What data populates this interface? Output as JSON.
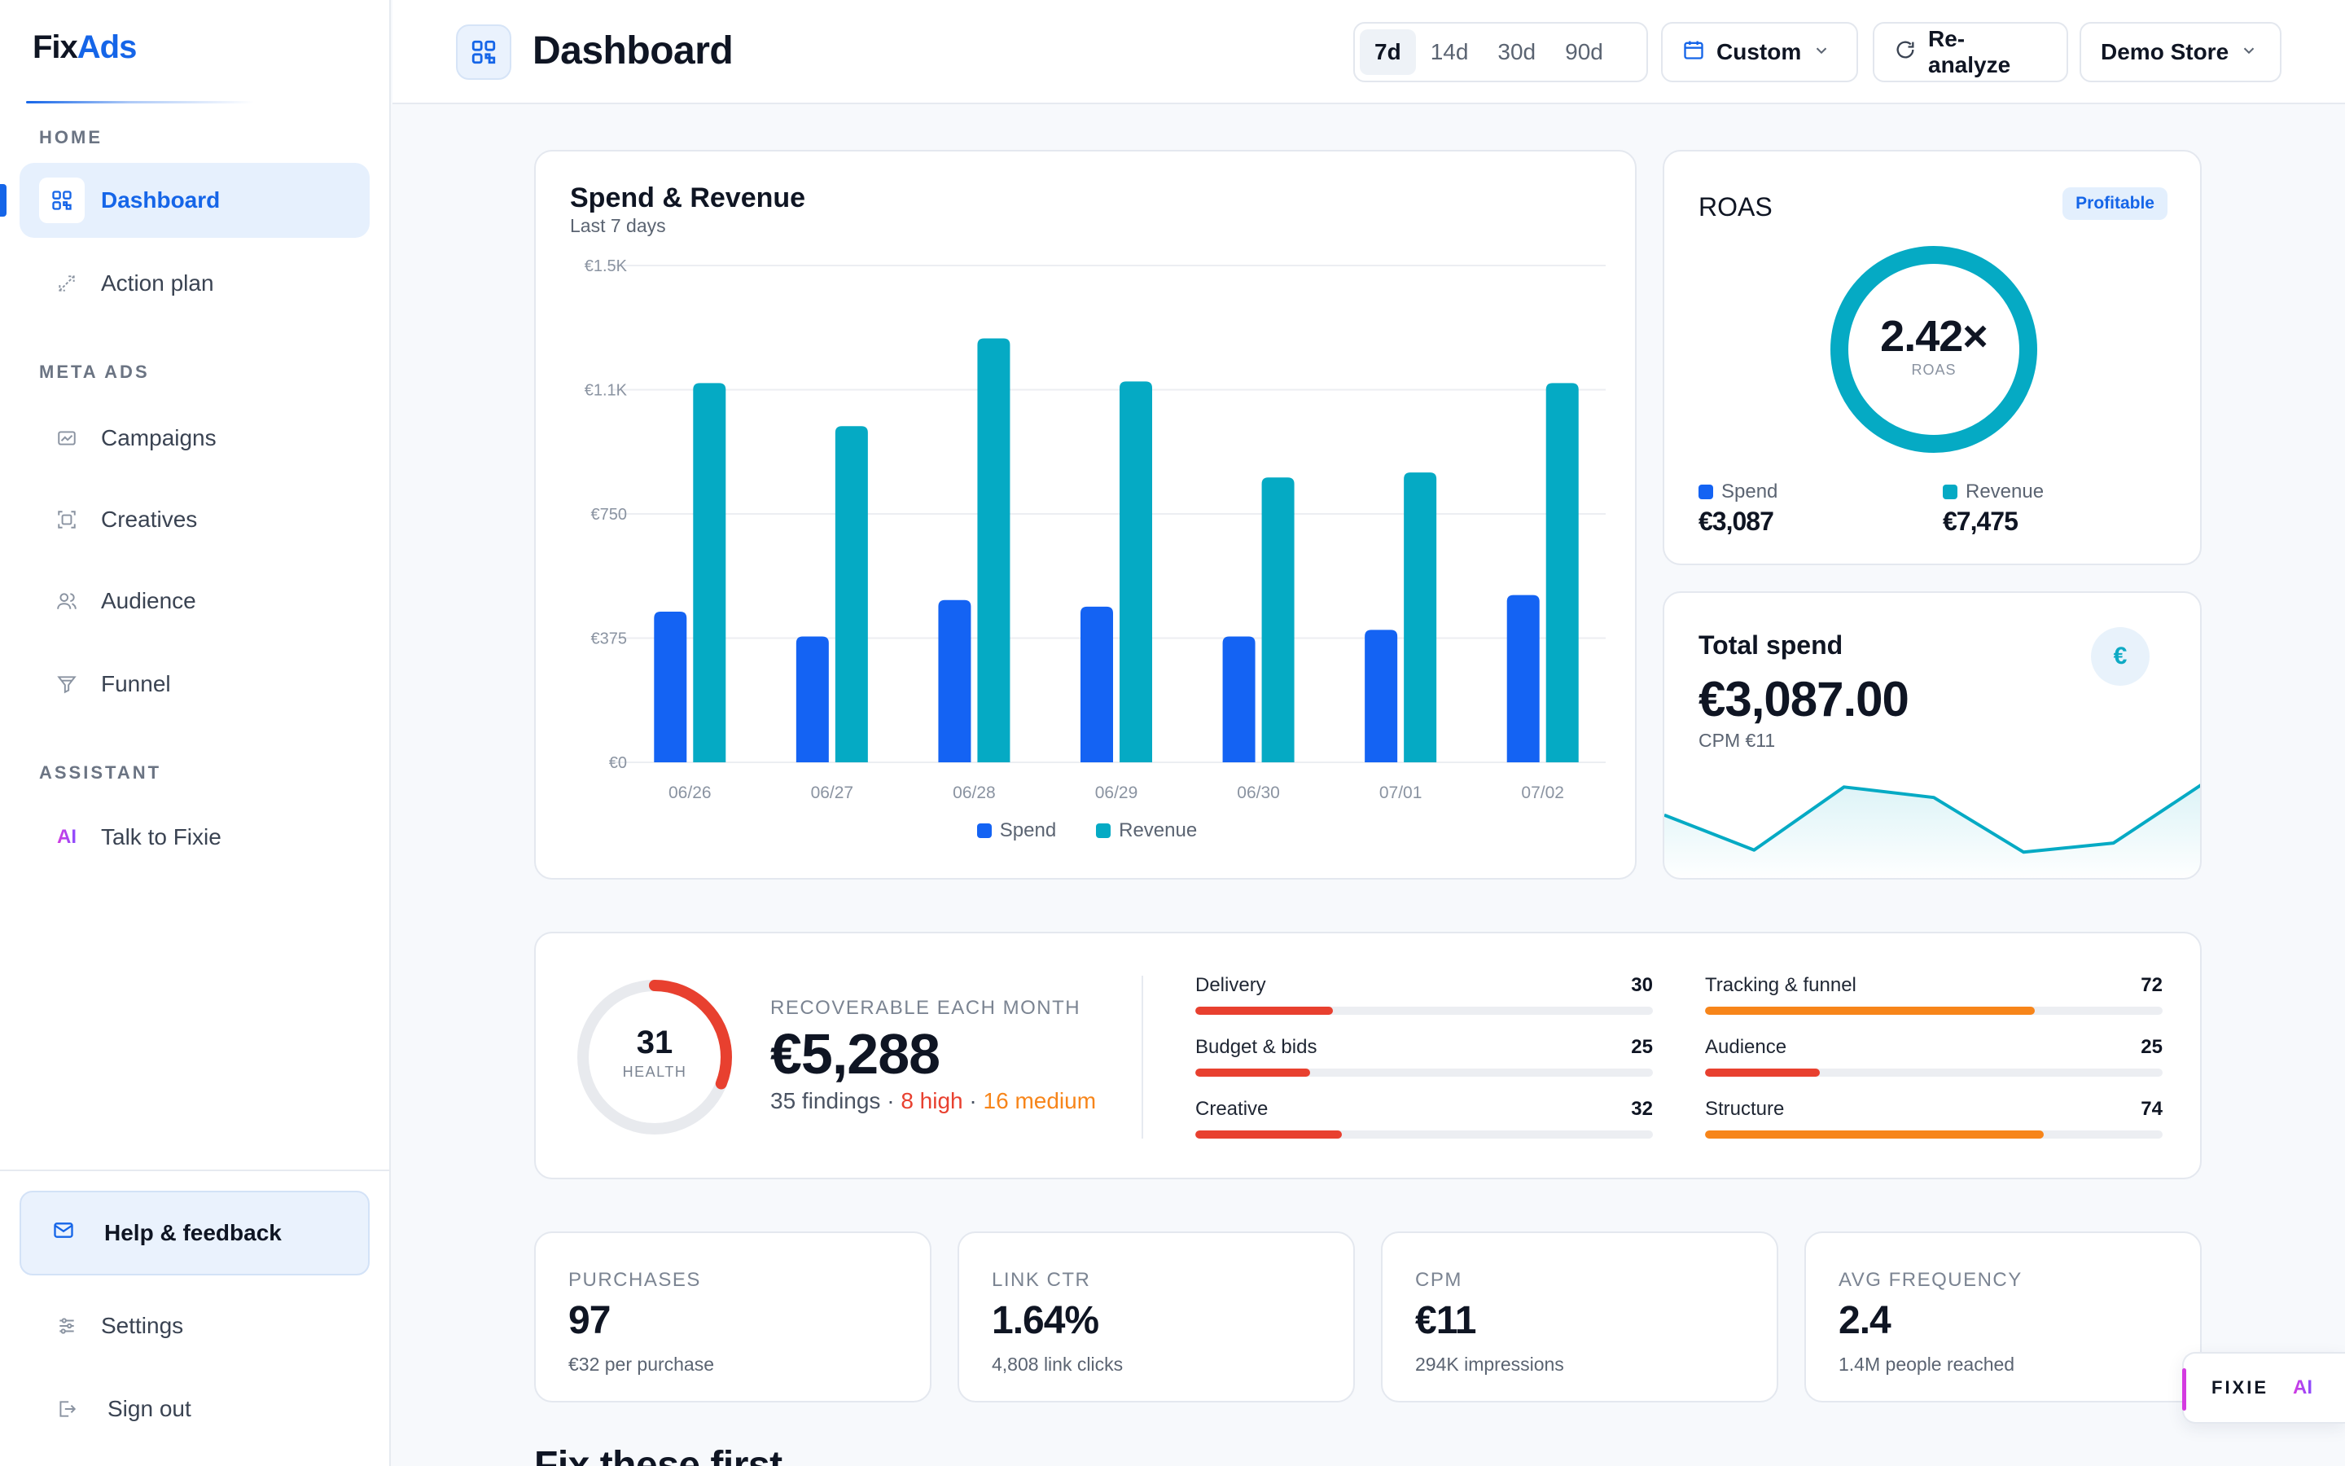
{
  "brand": {
    "fix": "Fix",
    "ads": "Ads"
  },
  "sidebar": {
    "home_label": "HOME",
    "meta_label": "META ADS",
    "assistant_label": "ASSISTANT",
    "items": {
      "dashboard": "Dashboard",
      "action_plan": "Action plan",
      "campaigns": "Campaigns",
      "creatives": "Creatives",
      "audience": "Audience",
      "funnel": "Funnel",
      "talk": "Talk to Fixie"
    },
    "ai_glyph": "AI",
    "help": "Help & feedback",
    "settings": "Settings",
    "signout": "Sign out"
  },
  "header": {
    "title": "Dashboard",
    "ranges": [
      "7d",
      "14d",
      "30d",
      "90d"
    ],
    "active_range": "7d",
    "custom": "Custom",
    "reanalyze": "Re-analyze",
    "store": "Demo Store"
  },
  "spend_chart": {
    "title": "Spend & Revenue",
    "subtitle": "Last 7 days",
    "legend_spend": "Spend",
    "legend_revenue": "Revenue"
  },
  "chart_data": {
    "type": "bar",
    "categories": [
      "06/26",
      "06/27",
      "06/28",
      "06/29",
      "06/30",
      "07/01",
      "07/02"
    ],
    "series": [
      {
        "name": "Spend",
        "values": [
          455,
          380,
          490,
          470,
          380,
          400,
          505
        ],
        "color": "#1463f3"
      },
      {
        "name": "Revenue",
        "values": [
          1145,
          1015,
          1280,
          1150,
          860,
          875,
          1145
        ],
        "color": "#05aac4"
      }
    ],
    "ylim": [
      0,
      1500
    ],
    "yticks": [
      "€0",
      "€375",
      "€750",
      "€1.1K",
      "€1.5K"
    ],
    "grid": true,
    "legend": "bottom-center"
  },
  "roas": {
    "title": "ROAS",
    "badge": "Profitable",
    "value": "2.42×",
    "ring_label": "ROAS",
    "spend_label": "Spend",
    "spend_value": "€3,087",
    "revenue_label": "Revenue",
    "revenue_value": "€7,475"
  },
  "total_spend": {
    "title": "Total spend",
    "value": "€3,087.00",
    "cpm": "CPM €11",
    "icon": "€",
    "sparkline": [
      0.45,
      0.95,
      0.05,
      0.2,
      0.98,
      0.85,
      0.0
    ]
  },
  "health": {
    "score": "31",
    "score_fraction": 0.31,
    "label": "HEALTH",
    "recoverable_label": "RECOVERABLE EACH MONTH",
    "recoverable_value": "€5,288",
    "findings": "35 findings",
    "sep1": "·",
    "high": "8 high",
    "sep2": "·",
    "medium": "16 medium",
    "categories": [
      {
        "name": "Delivery",
        "value": "30",
        "fraction": 0.3,
        "color": "#e8402f"
      },
      {
        "name": "Tracking & funnel",
        "value": "72",
        "fraction": 0.72,
        "color": "#f7851a"
      },
      {
        "name": "Budget & bids",
        "value": "25",
        "fraction": 0.25,
        "color": "#e8402f"
      },
      {
        "name": "Audience",
        "value": "25",
        "fraction": 0.25,
        "color": "#e8402f"
      },
      {
        "name": "Creative",
        "value": "32",
        "fraction": 0.32,
        "color": "#e8402f"
      },
      {
        "name": "Structure",
        "value": "74",
        "fraction": 0.74,
        "color": "#f7851a"
      }
    ]
  },
  "kpis": [
    {
      "label": "PURCHASES",
      "value": "97",
      "sub": "€32 per purchase"
    },
    {
      "label": "LINK CTR",
      "value": "1.64%",
      "sub": "4,808 link clicks"
    },
    {
      "label": "CPM",
      "value": "€11",
      "sub": "294K impressions"
    },
    {
      "label": "AVG FREQUENCY",
      "value": "2.4",
      "sub": "1.4M people reached"
    }
  ],
  "fixie": {
    "label": "FIXIE",
    "ai": "AI"
  },
  "next_section": "Fix these first"
}
